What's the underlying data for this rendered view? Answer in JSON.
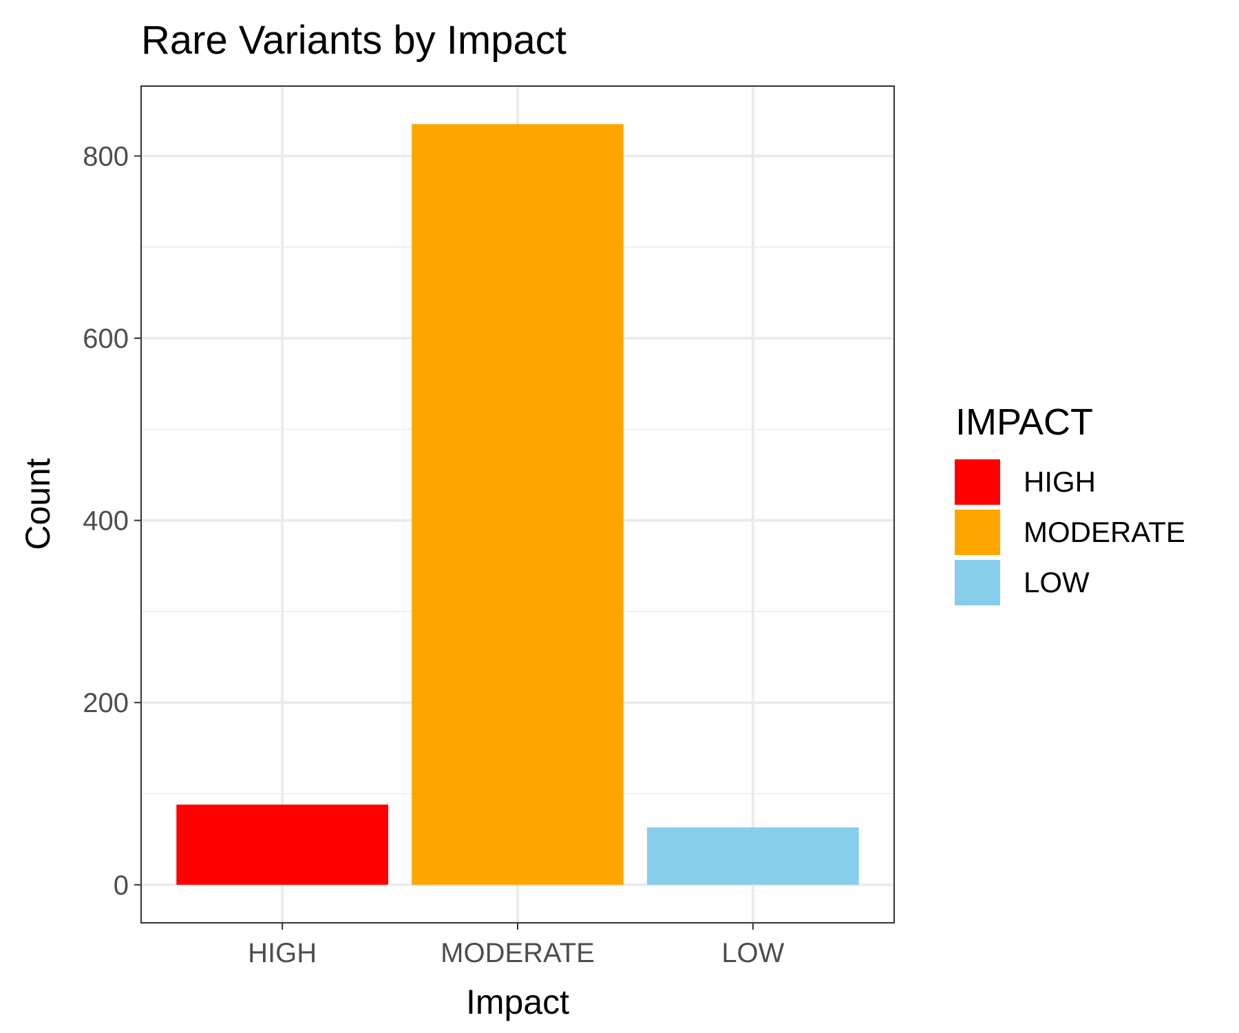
{
  "chart_data": {
    "type": "bar",
    "title": "Rare Variants by Impact",
    "xlabel": "Impact",
    "ylabel": "Count",
    "categories": [
      "HIGH",
      "MODERATE",
      "LOW"
    ],
    "values": [
      88,
      835,
      63
    ],
    "colors": [
      "#FF0000",
      "#FFA500",
      "#87CEEB"
    ],
    "ylim": [
      -41.75,
      876.75
    ],
    "yticks": [
      0,
      200,
      400,
      600,
      800
    ],
    "ytick_labels": [
      "0",
      "200",
      "400",
      "600",
      "800"
    ],
    "grid": true,
    "legend": {
      "title": "IMPACT",
      "position": "right",
      "items": [
        "HIGH",
        "MODERATE",
        "LOW"
      ]
    }
  }
}
